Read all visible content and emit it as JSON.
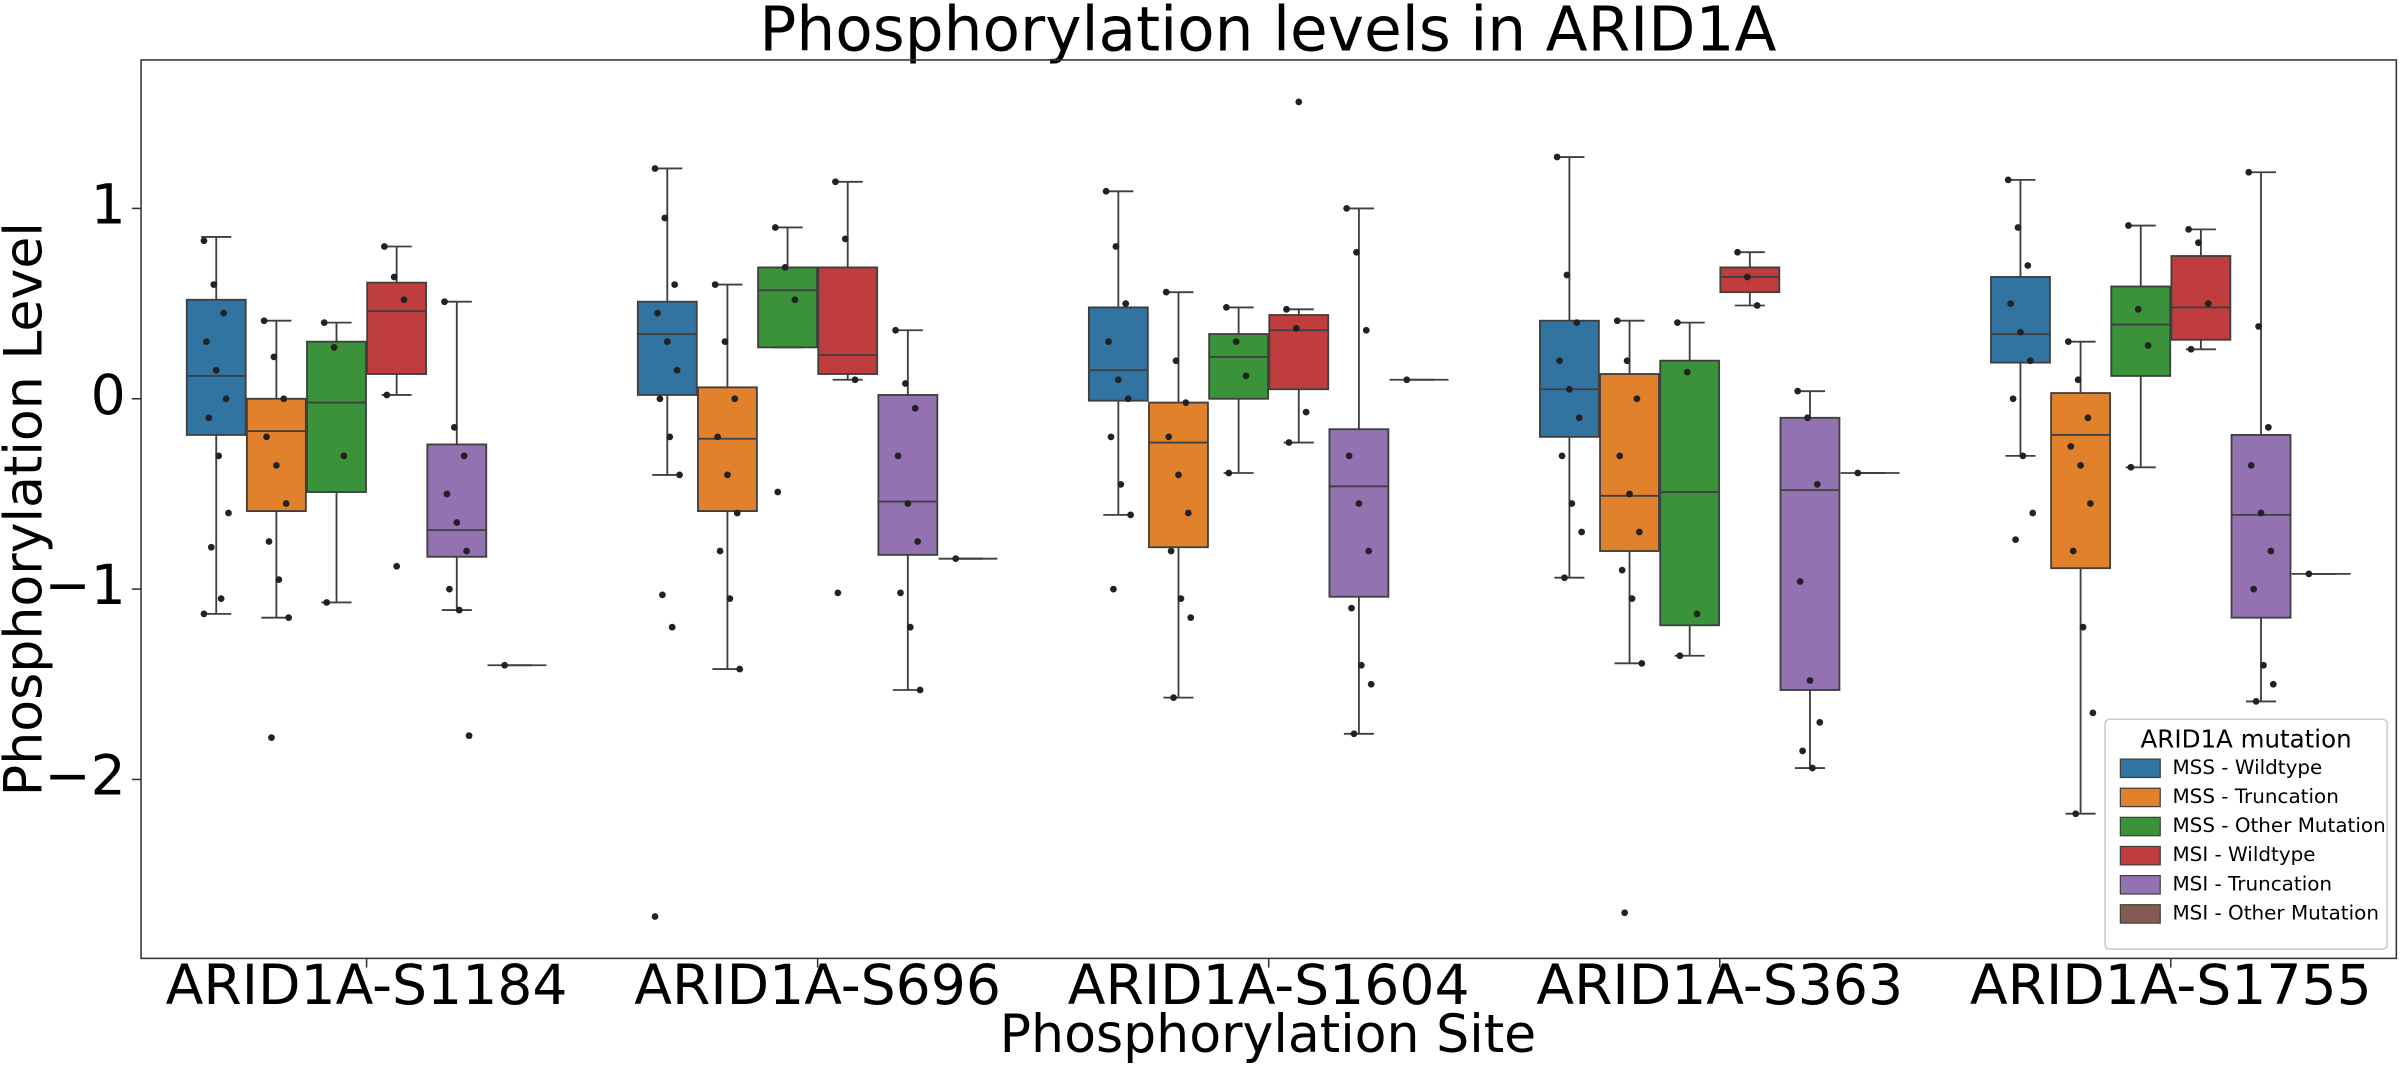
{
  "chart_data": {
    "type": "boxplot",
    "title": "Phosphorylation levels in ARID1A",
    "x_label": "Phosphorylation Site",
    "y_label": "Phosphorylation Level",
    "categories": [
      "ARID1A-S1184",
      "ARID1A-S696",
      "ARID1A-S1604",
      "ARID1A-S363",
      "ARID1A-S1755"
    ],
    "ylim": [
      -2.94,
      1.78
    ],
    "yticks": [
      {
        "value": -2,
        "label": "−2"
      },
      {
        "value": -1,
        "label": "−1"
      },
      0,
      1
    ],
    "legend_title": "ARID1A mutation",
    "legend_position": "lower right",
    "series": [
      {
        "name": "MSS - Wildtype",
        "color": "#3274a1",
        "boxes": [
          {
            "low": -1.13,
            "q1": -0.19,
            "median": 0.12,
            "q3": 0.52,
            "high": 0.85,
            "points": [
              0.83,
              0.6,
              0.45,
              0.3,
              0.15,
              0.0,
              -0.1,
              -0.3,
              -0.6,
              -0.78,
              -1.05,
              -1.13
            ]
          },
          {
            "low": -0.4,
            "q1": 0.02,
            "median": 0.34,
            "q3": 0.51,
            "high": 1.21,
            "points": [
              1.21,
              0.95,
              0.6,
              0.45,
              0.3,
              0.15,
              0.0,
              -0.2,
              -0.4,
              -1.03,
              -1.2,
              -2.72
            ]
          },
          {
            "low": -0.61,
            "q1": -0.01,
            "median": 0.15,
            "q3": 0.48,
            "high": 1.09,
            "points": [
              1.09,
              0.8,
              0.5,
              0.3,
              0.1,
              0.0,
              -0.2,
              -0.45,
              -0.61,
              -1.0
            ]
          },
          {
            "low": -0.94,
            "q1": -0.2,
            "median": 0.05,
            "q3": 0.41,
            "high": 1.27,
            "points": [
              1.27,
              0.65,
              0.4,
              0.2,
              0.05,
              -0.1,
              -0.3,
              -0.55,
              -0.7,
              -0.94
            ]
          },
          {
            "low": -0.3,
            "q1": 0.19,
            "median": 0.34,
            "q3": 0.64,
            "high": 1.15,
            "points": [
              1.15,
              0.9,
              0.7,
              0.5,
              0.35,
              0.2,
              0.0,
              -0.3,
              -0.6,
              -0.74
            ]
          }
        ]
      },
      {
        "name": "MSS - Truncation",
        "color": "#e1812c",
        "boxes": [
          {
            "low": -1.15,
            "q1": -0.59,
            "median": -0.17,
            "q3": 0.0,
            "high": 0.41,
            "points": [
              0.41,
              0.22,
              0.0,
              -0.2,
              -0.35,
              -0.55,
              -0.75,
              -0.95,
              -1.15,
              -1.78
            ]
          },
          {
            "low": -1.42,
            "q1": -0.59,
            "median": -0.21,
            "q3": 0.06,
            "high": 0.6,
            "points": [
              0.6,
              0.3,
              0.0,
              -0.2,
              -0.4,
              -0.6,
              -0.8,
              -1.05,
              -1.42
            ]
          },
          {
            "low": -1.57,
            "q1": -0.78,
            "median": -0.23,
            "q3": -0.02,
            "high": 0.56,
            "points": [
              0.56,
              0.2,
              -0.02,
              -0.2,
              -0.4,
              -0.6,
              -0.8,
              -1.05,
              -1.15,
              -1.57
            ]
          },
          {
            "low": -1.39,
            "q1": -0.8,
            "median": -0.51,
            "q3": 0.13,
            "high": 0.41,
            "points": [
              0.41,
              0.2,
              0.0,
              -0.3,
              -0.5,
              -0.7,
              -0.9,
              -1.05,
              -1.39,
              -2.7
            ]
          },
          {
            "low": -2.18,
            "q1": -0.89,
            "median": -0.19,
            "q3": 0.03,
            "high": 0.3,
            "points": [
              0.3,
              0.1,
              -0.1,
              -0.25,
              -0.35,
              -0.55,
              -0.8,
              -1.2,
              -1.65,
              -2.18
            ]
          }
        ]
      },
      {
        "name": "MSS - Other Mutation",
        "color": "#3a923a",
        "boxes": [
          {
            "low": -1.07,
            "q1": -0.49,
            "median": -0.02,
            "q3": 0.3,
            "high": 0.4,
            "points": [
              0.4,
              0.27,
              -0.3,
              -1.07
            ]
          },
          {
            "low": 0.27,
            "q1": 0.27,
            "median": 0.57,
            "q3": 0.69,
            "high": 0.9,
            "points": [
              0.9,
              0.69,
              0.52,
              -0.49
            ]
          },
          {
            "low": -0.39,
            "q1": 0.0,
            "median": 0.22,
            "q3": 0.34,
            "high": 0.48,
            "points": [
              0.48,
              0.3,
              0.12,
              -0.39
            ]
          },
          {
            "low": -1.35,
            "q1": -1.19,
            "median": -0.49,
            "q3": 0.2,
            "high": 0.4,
            "points": [
              0.4,
              0.14,
              -1.13,
              -1.35
            ]
          },
          {
            "low": -0.36,
            "q1": 0.12,
            "median": 0.39,
            "q3": 0.59,
            "high": 0.91,
            "points": [
              0.91,
              0.47,
              0.28,
              -0.36
            ]
          }
        ]
      },
      {
        "name": "MSI - Wildtype",
        "color": "#c03d3e",
        "boxes": [
          {
            "low": 0.02,
            "q1": 0.13,
            "median": 0.46,
            "q3": 0.61,
            "high": 0.8,
            "points": [
              0.8,
              0.64,
              0.52,
              0.02,
              -0.88
            ]
          },
          {
            "low": 0.1,
            "q1": 0.13,
            "median": 0.23,
            "q3": 0.69,
            "high": 1.14,
            "points": [
              1.14,
              0.84,
              0.1,
              -1.02
            ]
          },
          {
            "low": -0.23,
            "q1": 0.05,
            "median": 0.36,
            "q3": 0.44,
            "high": 0.47,
            "points": [
              0.47,
              0.37,
              -0.07,
              -0.23,
              1.56
            ]
          },
          {
            "low": 0.49,
            "q1": 0.56,
            "median": 0.64,
            "q3": 0.69,
            "high": 0.77,
            "points": [
              0.77,
              0.64,
              0.49
            ]
          },
          {
            "low": 0.26,
            "q1": 0.31,
            "median": 0.48,
            "q3": 0.75,
            "high": 0.89,
            "points": [
              0.89,
              0.82,
              0.5,
              0.26
            ]
          }
        ]
      },
      {
        "name": "MSI - Truncation",
        "color": "#9372b2",
        "boxes": [
          {
            "low": -1.11,
            "q1": -0.83,
            "median": -0.69,
            "q3": -0.24,
            "high": 0.51,
            "points": [
              0.51,
              -0.15,
              -0.3,
              -0.5,
              -0.65,
              -0.8,
              -1.0,
              -1.11,
              -1.77
            ]
          },
          {
            "low": -1.53,
            "q1": -0.82,
            "median": -0.54,
            "q3": 0.02,
            "high": 0.36,
            "points": [
              0.36,
              0.08,
              -0.05,
              -0.3,
              -0.55,
              -0.75,
              -1.02,
              -1.2,
              -1.53
            ]
          },
          {
            "low": -1.76,
            "q1": -1.04,
            "median": -0.46,
            "q3": -0.16,
            "high": 1.0,
            "points": [
              1.0,
              0.77,
              0.36,
              -0.3,
              -0.55,
              -0.8,
              -1.1,
              -1.4,
              -1.5,
              -1.76
            ]
          },
          {
            "low": -1.94,
            "q1": -1.53,
            "median": -0.48,
            "q3": -0.1,
            "high": 0.04,
            "points": [
              0.04,
              -0.1,
              -0.45,
              -0.96,
              -1.48,
              -1.7,
              -1.85,
              -1.94
            ]
          },
          {
            "low": -1.59,
            "q1": -1.15,
            "median": -0.61,
            "q3": -0.19,
            "high": 1.19,
            "points": [
              1.19,
              0.38,
              -0.15,
              -0.35,
              -0.6,
              -0.8,
              -1.0,
              -1.4,
              -1.5,
              -1.59
            ]
          }
        ]
      },
      {
        "name": "MSI - Other Mutation",
        "color": "#845b53",
        "boxes": [
          {
            "low": -1.4,
            "q1": -1.4,
            "median": -1.4,
            "q3": -1.4,
            "high": -1.4,
            "points": [
              -1.4
            ]
          },
          {
            "low": -0.84,
            "q1": -0.84,
            "median": -0.84,
            "q3": -0.84,
            "high": -0.84,
            "points": [
              -0.84
            ]
          },
          {
            "low": 0.1,
            "q1": 0.1,
            "median": 0.1,
            "q3": 0.1,
            "high": 0.1,
            "points": [
              0.1
            ]
          },
          {
            "low": -0.39,
            "q1": -0.39,
            "median": -0.39,
            "q3": -0.39,
            "high": -0.39,
            "points": [
              -0.39
            ]
          },
          {
            "low": -0.92,
            "q1": -0.92,
            "median": -0.92,
            "q3": -0.92,
            "high": -0.92,
            "points": [
              -0.92
            ]
          }
        ]
      }
    ]
  }
}
